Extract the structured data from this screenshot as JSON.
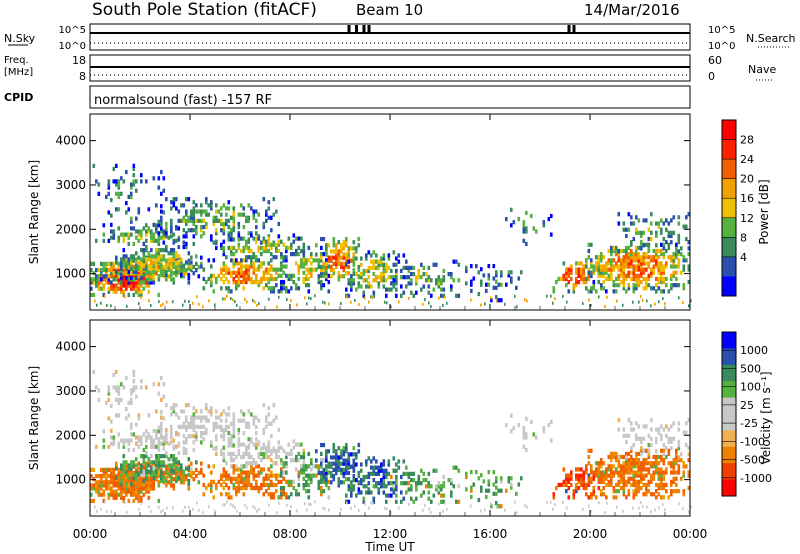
{
  "header": {
    "station": "South Pole Station (fitACF)",
    "beam": "Beam 10",
    "date": "14/Mar/2016"
  },
  "summary_panels": {
    "nsky_label": "N.Sky",
    "nsky_ticks": [
      "10^5",
      "10^0"
    ],
    "nsearch_label": "N.Search",
    "nsearch_ticks": [
      "10^5",
      "10^0"
    ],
    "freq_label_1": "Freq.",
    "freq_label_2": "[MHz]",
    "freq_ticks": [
      "18",
      "8"
    ],
    "nave_label": "Nave",
    "nave_ticks": [
      "60",
      "0"
    ],
    "cpid_label": "CPID",
    "cpid_text": "normalsound (fast) -157 RF"
  },
  "colors": {
    "power_scale": [
      "#0000ff",
      "#2850ac",
      "#3a8b5c",
      "#55b240",
      "#f0c000",
      "#f0a000",
      "#f06000",
      "#ff2000",
      "#ff0000"
    ],
    "velocity_scale": [
      "#ff0000",
      "#f04000",
      "#f08000",
      "#f0b050",
      "#c8c8c8",
      "#c8c8c8",
      "#55b240",
      "#3a8b5c",
      "#2850ac",
      "#0000ff"
    ]
  },
  "chart_data": [
    {
      "type": "heatmap",
      "name": "power",
      "ylabel": "Slant Range [km]",
      "yticks": [
        1000,
        2000,
        3000,
        4000
      ],
      "ylim": [
        180,
        4600
      ],
      "xlim": [
        0,
        24
      ],
      "colorbar_label": "Power [dB]",
      "colorbar_ticks": [
        "28",
        "24",
        "20",
        "16",
        "12",
        "8",
        "4"
      ],
      "colorbar_range": [
        0,
        32
      ]
    },
    {
      "type": "heatmap",
      "name": "velocity",
      "ylabel": "Slant Range [km]",
      "yticks": [
        1000,
        2000,
        3000,
        4000
      ],
      "ylim": [
        180,
        4600
      ],
      "xlim": [
        0,
        24
      ],
      "colorbar_label": "Velocity [m s^-1]",
      "colorbar_ticks": [
        "1000",
        "500",
        "100",
        "25",
        "-25",
        "-100",
        "-500",
        "-1000"
      ],
      "colorbar_range": [
        -1000,
        1000
      ]
    }
  ],
  "xaxis": {
    "label": "Time UT",
    "ticks": [
      "00:00",
      "04:00",
      "08:00",
      "12:00",
      "16:00",
      "20:00",
      "00:00"
    ]
  }
}
